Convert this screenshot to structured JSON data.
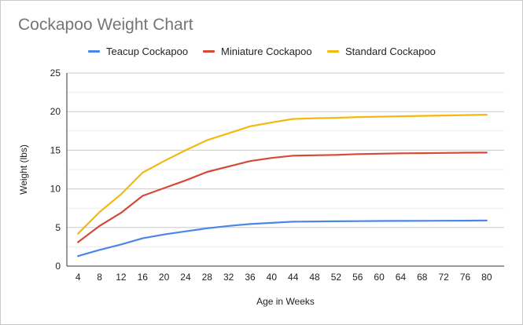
{
  "chart_data": {
    "type": "line",
    "title": "Cockapoo Weight Chart",
    "xlabel": "Age in Weeks",
    "ylabel": "Weight (lbs)",
    "x": [
      4,
      8,
      12,
      16,
      20,
      24,
      28,
      32,
      36,
      40,
      44,
      48,
      52,
      56,
      60,
      64,
      68,
      72,
      76,
      80
    ],
    "ylim": [
      0,
      25
    ],
    "yticks": [
      0,
      5,
      10,
      15,
      20,
      25
    ],
    "grid": true,
    "legend_position": "top",
    "series": [
      {
        "name": "Teacup Cockapoo",
        "color": "#4a86e8",
        "values": [
          1.3,
          2.1,
          2.8,
          3.6,
          4.1,
          4.5,
          4.9,
          5.2,
          5.45,
          5.6,
          5.75,
          5.78,
          5.8,
          5.82,
          5.84,
          5.85,
          5.86,
          5.87,
          5.88,
          5.9
        ]
      },
      {
        "name": "Miniature Cockapoo",
        "color": "#d64937",
        "values": [
          3.1,
          5.2,
          6.9,
          9.1,
          10.1,
          11.1,
          12.2,
          12.9,
          13.6,
          14.0,
          14.3,
          14.35,
          14.4,
          14.5,
          14.55,
          14.6,
          14.62,
          14.65,
          14.68,
          14.7
        ]
      },
      {
        "name": "Standard Cockapoo",
        "color": "#f2b90f",
        "values": [
          4.2,
          7.0,
          9.3,
          12.1,
          13.6,
          15.0,
          16.3,
          17.2,
          18.1,
          18.6,
          19.05,
          19.15,
          19.2,
          19.3,
          19.35,
          19.4,
          19.45,
          19.5,
          19.55,
          19.6
        ]
      }
    ]
  }
}
